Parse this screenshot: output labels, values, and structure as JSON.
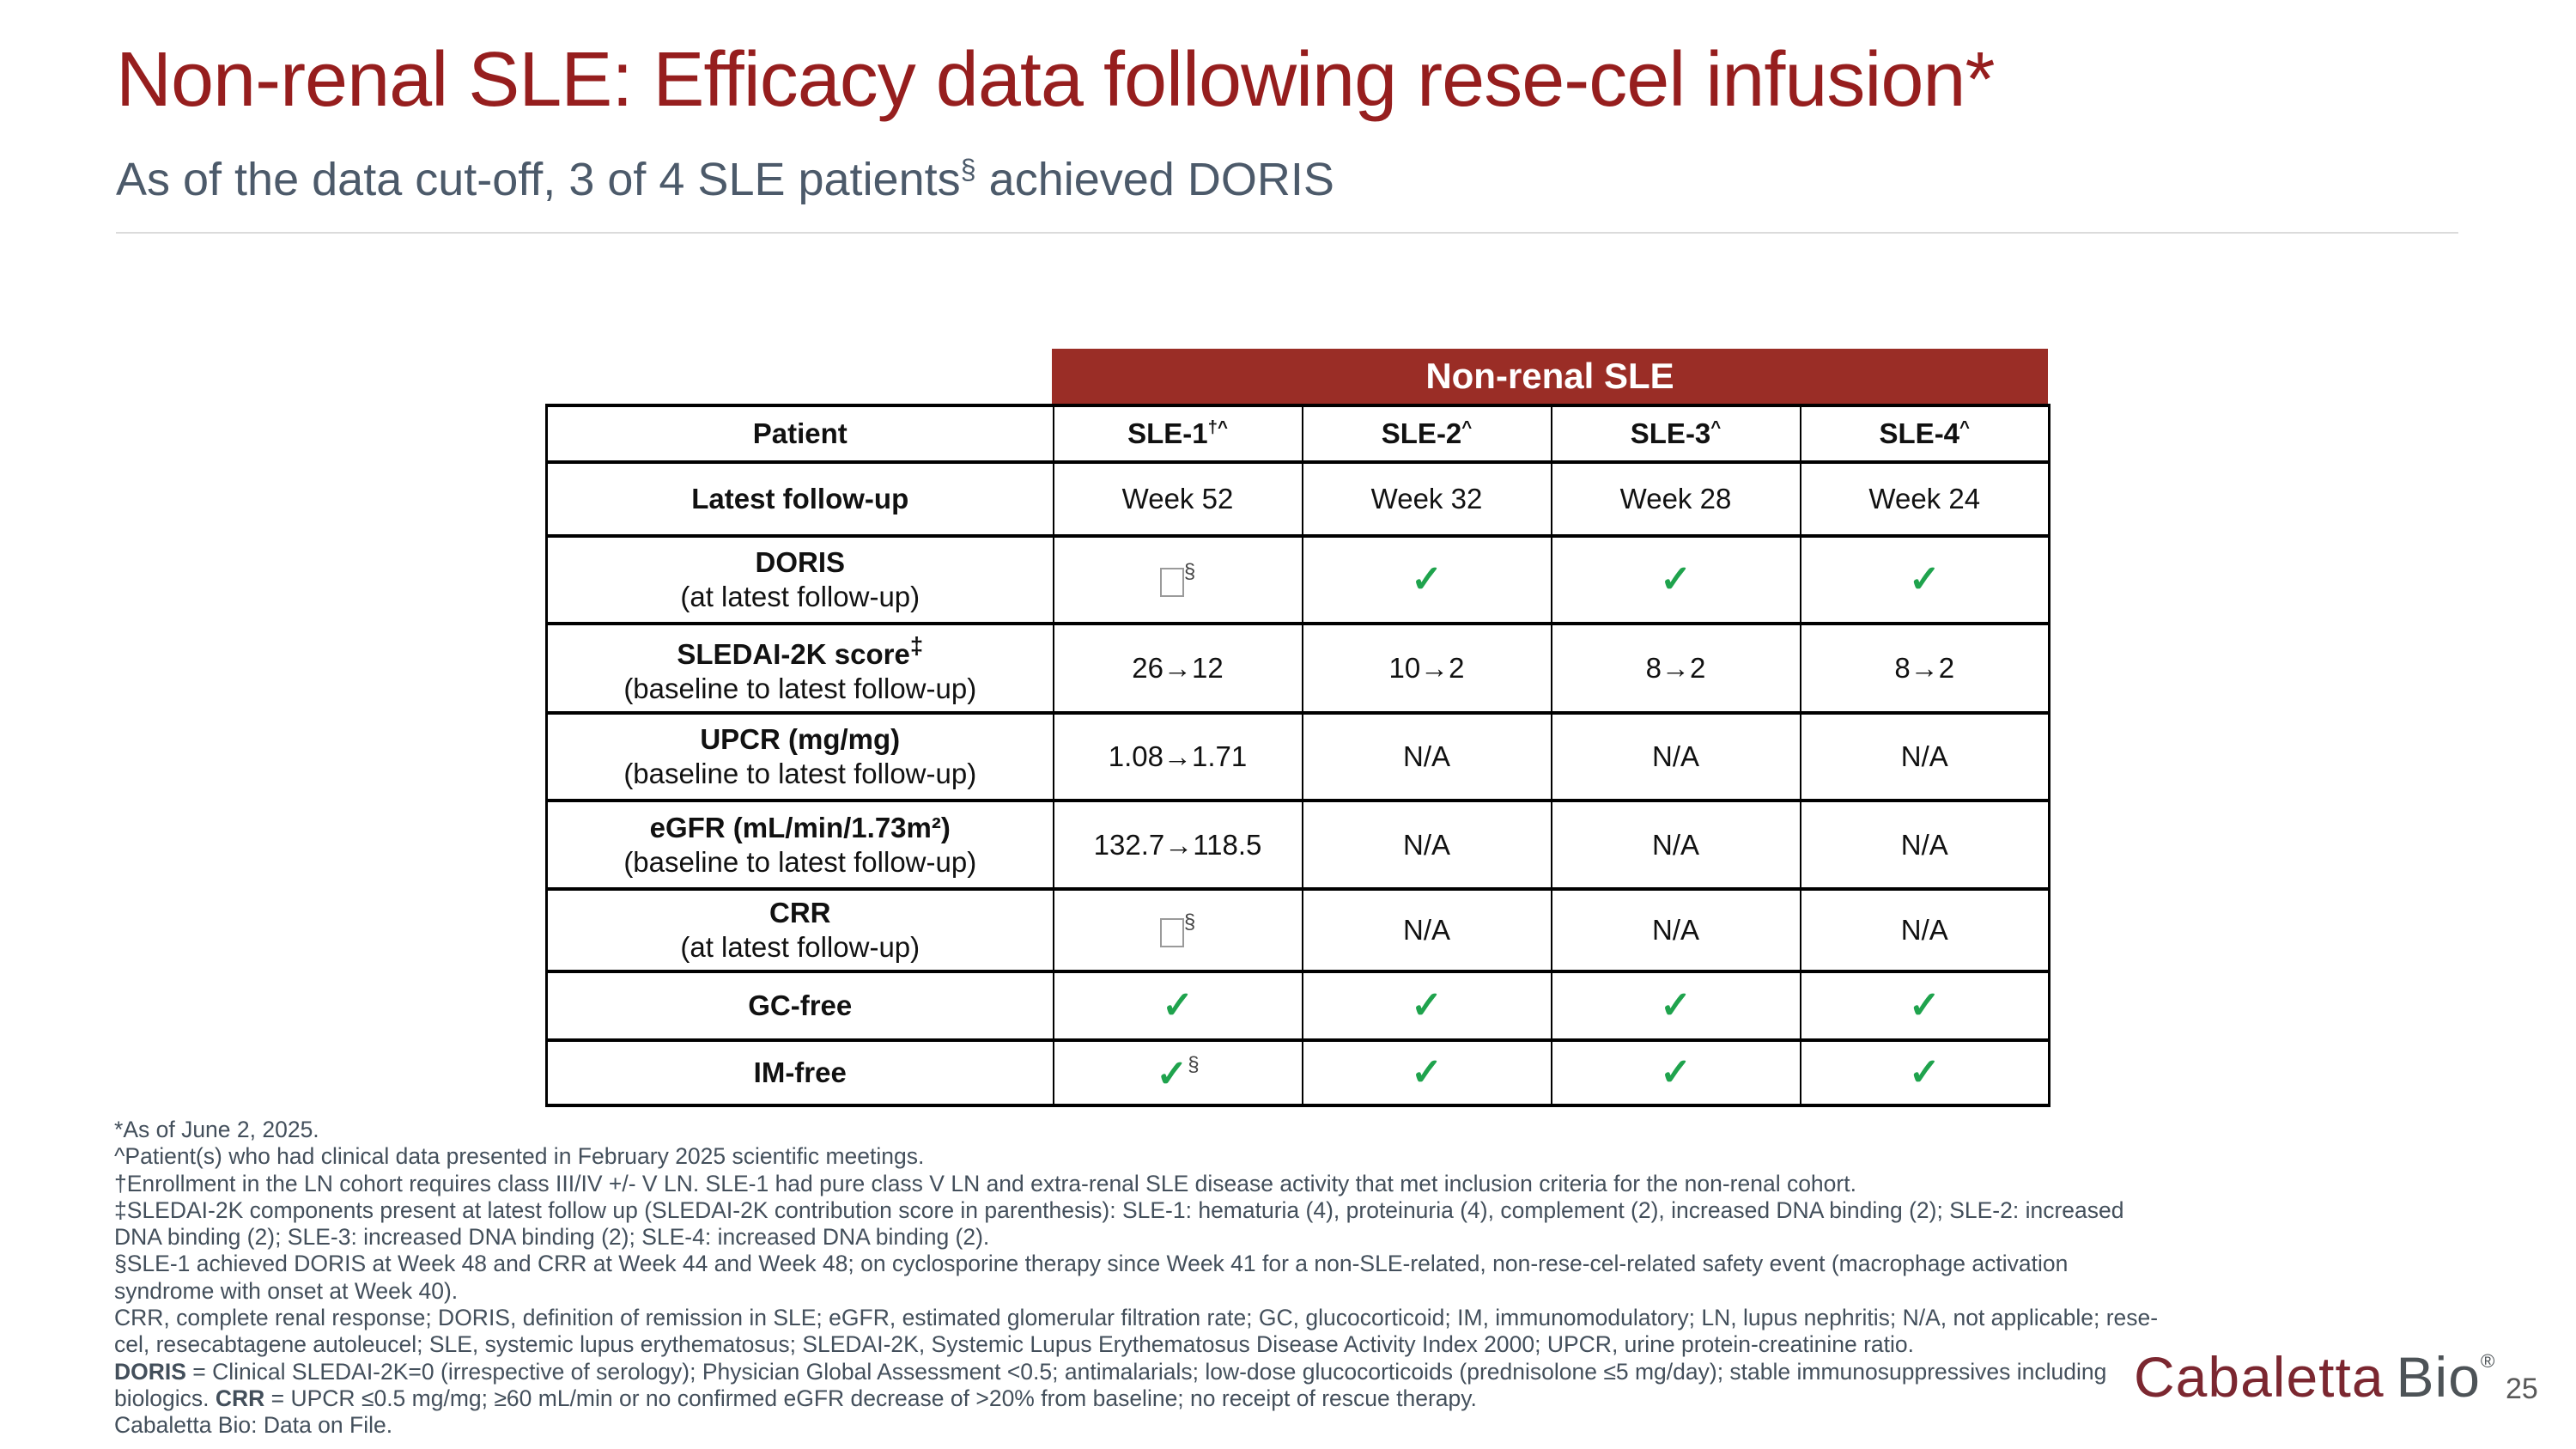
{
  "slide": {
    "title": "Non-renal SLE: Efficacy data following rese-cel infusion*",
    "subtitle": {
      "pre": "As of the data cut-off, 3 of 4 SLE patients",
      "sup": "§",
      "post": " achieved DORIS"
    },
    "page_number": "25"
  },
  "logo": {
    "primary": "Cabaletta",
    "secondary": "Bio",
    "registered": "®"
  },
  "colors": {
    "title_red": "#961E1E",
    "banner_red": "#9A2D26",
    "subtitle_slate": "#4C5A6A",
    "footnote_slate": "#434F5B",
    "check_green": "#1FA34D",
    "na_gray": "#C9C9C9"
  },
  "table": {
    "banner_label": "Non-renal SLE",
    "na_label": "N/A",
    "check_glyph": "✓",
    "header": [
      {
        "label": "Patient",
        "sup": ""
      },
      {
        "label": "SLE-1",
        "sup": "†^"
      },
      {
        "label": "SLE-2",
        "sup": "^"
      },
      {
        "label": "SLE-3",
        "sup": "^"
      },
      {
        "label": "SLE-4",
        "sup": "^"
      }
    ],
    "rows": [
      {
        "name": "latest-follow-up",
        "label": "Latest follow-up",
        "label_sup": "",
        "sublabel": "",
        "cells": [
          {
            "type": "text",
            "value": "Week 52"
          },
          {
            "type": "text",
            "value": "Week 32"
          },
          {
            "type": "text",
            "value": "Week 28"
          },
          {
            "type": "text",
            "value": "Week 24"
          }
        ]
      },
      {
        "name": "doris",
        "label": "DORIS",
        "label_sup": "",
        "sublabel": "(at latest follow-up)",
        "cells": [
          {
            "type": "missing",
            "sup": "§"
          },
          {
            "type": "check"
          },
          {
            "type": "check"
          },
          {
            "type": "check"
          }
        ]
      },
      {
        "name": "sledai-2k-score",
        "label": "SLEDAI-2K score",
        "label_sup": "‡",
        "sublabel": "(baseline to latest follow-up)",
        "cells": [
          {
            "type": "text",
            "value": "26→12"
          },
          {
            "type": "text",
            "value": "10→2"
          },
          {
            "type": "text",
            "value": "8→2"
          },
          {
            "type": "text",
            "value": "8→2"
          }
        ]
      },
      {
        "name": "upcr",
        "label": "UPCR (mg/mg)",
        "label_sup": "",
        "sublabel": "(baseline to latest follow-up)",
        "cells": [
          {
            "type": "text",
            "value": "1.08→1.71"
          },
          {
            "type": "na"
          },
          {
            "type": "na"
          },
          {
            "type": "na"
          }
        ]
      },
      {
        "name": "egfr",
        "label": "eGFR (mL/min/1.73m²)",
        "label_sup": "",
        "sublabel": "(baseline to latest follow-up)",
        "cells": [
          {
            "type": "text",
            "value": "132.7→118.5"
          },
          {
            "type": "na"
          },
          {
            "type": "na"
          },
          {
            "type": "na"
          }
        ]
      },
      {
        "name": "crr",
        "label": "CRR",
        "label_sup": "",
        "sublabel": "(at latest follow-up)",
        "cells": [
          {
            "type": "missing",
            "sup": "§"
          },
          {
            "type": "na"
          },
          {
            "type": "na"
          },
          {
            "type": "na"
          }
        ]
      },
      {
        "name": "gc-free",
        "label": "GC-free",
        "label_sup": "",
        "sublabel": "",
        "cells": [
          {
            "type": "check"
          },
          {
            "type": "check"
          },
          {
            "type": "check"
          },
          {
            "type": "check"
          }
        ]
      },
      {
        "name": "im-free",
        "label": "IM-free",
        "label_sup": "",
        "sublabel": "",
        "cells": [
          {
            "type": "check",
            "sup": "§"
          },
          {
            "type": "check"
          },
          {
            "type": "check"
          },
          {
            "type": "check"
          }
        ]
      }
    ]
  },
  "footnotes": [
    {
      "segments": [
        {
          "text": "*As of June 2, 2025."
        }
      ]
    },
    {
      "segments": [
        {
          "text": "^Patient(s) who had clinical data presented in February 2025 scientific meetings."
        }
      ]
    },
    {
      "segments": [
        {
          "text": "†Enrollment in the LN cohort requires class III/IV +/- V LN. SLE-1 had pure class V LN and extra-renal SLE disease activity that met inclusion criteria for the non-renal cohort."
        }
      ]
    },
    {
      "segments": [
        {
          "text": "‡SLEDAI-2K components present at latest follow up (SLEDAI-2K contribution score in parenthesis): SLE-1: hematuria (4), proteinuria (4), complement (2), increased DNA binding (2); SLE-2: increased"
        }
      ]
    },
    {
      "segments": [
        {
          "text": "DNA binding (2); SLE-3: increased DNA binding (2); SLE-4: increased DNA binding (2)."
        }
      ]
    },
    {
      "segments": [
        {
          "text": "§SLE-1 achieved DORIS at Week 48 and CRR at Week 44 and Week 48; on cyclosporine therapy since Week 41 for a non-SLE-related, non-rese-cel-related safety event (macrophage activation"
        }
      ]
    },
    {
      "segments": [
        {
          "text": "syndrome with onset at Week 40)."
        }
      ]
    },
    {
      "segments": [
        {
          "text": "CRR, complete renal response; DORIS, definition of remission in SLE; eGFR, estimated glomerular filtration rate; GC, glucocorticoid; IM, immunomodulatory; LN, lupus nephritis; N/A, not applicable; rese-"
        }
      ]
    },
    {
      "segments": [
        {
          "text": "cel, resecabtagene autoleucel; SLE, systemic lupus erythematosus; SLEDAI-2K, Systemic Lupus Erythematosus Disease Activity Index 2000; UPCR, urine protein-creatinine ratio."
        }
      ]
    },
    {
      "segments": [
        {
          "text": "DORIS",
          "bold": true
        },
        {
          "text": " = Clinical SLEDAI-2K=0 (irrespective of serology); Physician Global Assessment <0.5; antimalarials; low-dose glucocorticoids (prednisolone ≤5 mg/day); stable immunosuppressives including"
        }
      ]
    },
    {
      "segments": [
        {
          "text": "biologics. "
        },
        {
          "text": "CRR",
          "bold": true
        },
        {
          "text": " = UPCR ≤0.5 mg/mg; ≥60 mL/min or no confirmed eGFR decrease of >20% from baseline; no receipt of rescue therapy."
        }
      ]
    },
    {
      "segments": [
        {
          "text": "Cabaletta Bio: Data on File."
        }
      ]
    }
  ]
}
